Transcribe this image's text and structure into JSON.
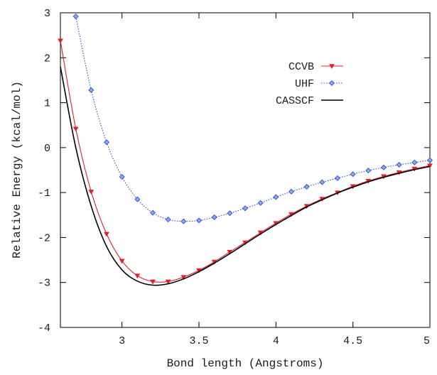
{
  "chart_data": {
    "type": "line",
    "title": "",
    "xlabel": "Bond length (Angstroms)",
    "ylabel": "Relative Energy (kcal/mol)",
    "xlim": [
      2.6,
      5.0
    ],
    "ylim": [
      -4,
      3
    ],
    "xticks": [
      3,
      3.5,
      4,
      4.5,
      5
    ],
    "xtick_labels": [
      "3",
      "3.5",
      "4",
      "4.5",
      "5"
    ],
    "yticks": [
      -4,
      -3,
      -2,
      -1,
      0,
      1,
      2,
      3
    ],
    "ytick_labels": [
      "-4",
      "-3",
      "-2",
      "-1",
      "0",
      "1",
      "2",
      "3"
    ],
    "grid": false,
    "legend_position": "top-right",
    "series": [
      {
        "name": "CCVB",
        "color": "#e0202a",
        "marker": "triangle-down",
        "line_style": "solid",
        "x": [
          2.6,
          2.7,
          2.8,
          2.9,
          3.0,
          3.1,
          3.2,
          3.3,
          3.4,
          3.5,
          3.6,
          3.7,
          3.8,
          3.9,
          4.0,
          4.1,
          4.2,
          4.3,
          4.4,
          4.5,
          4.6,
          4.7,
          4.8,
          4.9,
          5.0
        ],
        "y": [
          2.38,
          0.42,
          -0.98,
          -1.92,
          -2.52,
          -2.85,
          -2.98,
          -2.98,
          -2.88,
          -2.73,
          -2.54,
          -2.32,
          -2.11,
          -1.89,
          -1.68,
          -1.48,
          -1.3,
          -1.14,
          -1.0,
          -0.86,
          -0.74,
          -0.64,
          -0.55,
          -0.47,
          -0.4
        ]
      },
      {
        "name": "UHF",
        "color": "#2a4fd6",
        "marker": "diamond",
        "line_style": "dotted",
        "x": [
          2.7,
          2.8,
          2.9,
          3.0,
          3.1,
          3.2,
          3.3,
          3.4,
          3.5,
          3.6,
          3.7,
          3.8,
          3.9,
          4.0,
          4.1,
          4.2,
          4.3,
          4.4,
          4.5,
          4.6,
          4.7,
          4.8,
          4.9,
          5.0
        ],
        "y": [
          2.92,
          1.28,
          0.12,
          -0.65,
          -1.15,
          -1.45,
          -1.6,
          -1.64,
          -1.62,
          -1.55,
          -1.46,
          -1.35,
          -1.23,
          -1.1,
          -0.98,
          -0.87,
          -0.77,
          -0.68,
          -0.59,
          -0.51,
          -0.44,
          -0.38,
          -0.33,
          -0.28
        ]
      },
      {
        "name": "CASSCF",
        "color": "#000000",
        "marker": "none",
        "line_style": "solid",
        "x": [
          2.6,
          2.7,
          2.8,
          2.9,
          3.0,
          3.1,
          3.2,
          3.3,
          3.4,
          3.5,
          3.6,
          3.7,
          3.8,
          3.9,
          4.0,
          4.1,
          4.2,
          4.3,
          4.4,
          4.5,
          4.6,
          4.7,
          4.8,
          4.9,
          5.0
        ],
        "y": [
          1.8,
          0.0,
          -1.3,
          -2.2,
          -2.72,
          -2.97,
          -3.06,
          -3.03,
          -2.92,
          -2.76,
          -2.57,
          -2.36,
          -2.14,
          -1.92,
          -1.71,
          -1.51,
          -1.32,
          -1.16,
          -1.01,
          -0.88,
          -0.76,
          -0.66,
          -0.57,
          -0.49,
          -0.42
        ]
      }
    ]
  }
}
